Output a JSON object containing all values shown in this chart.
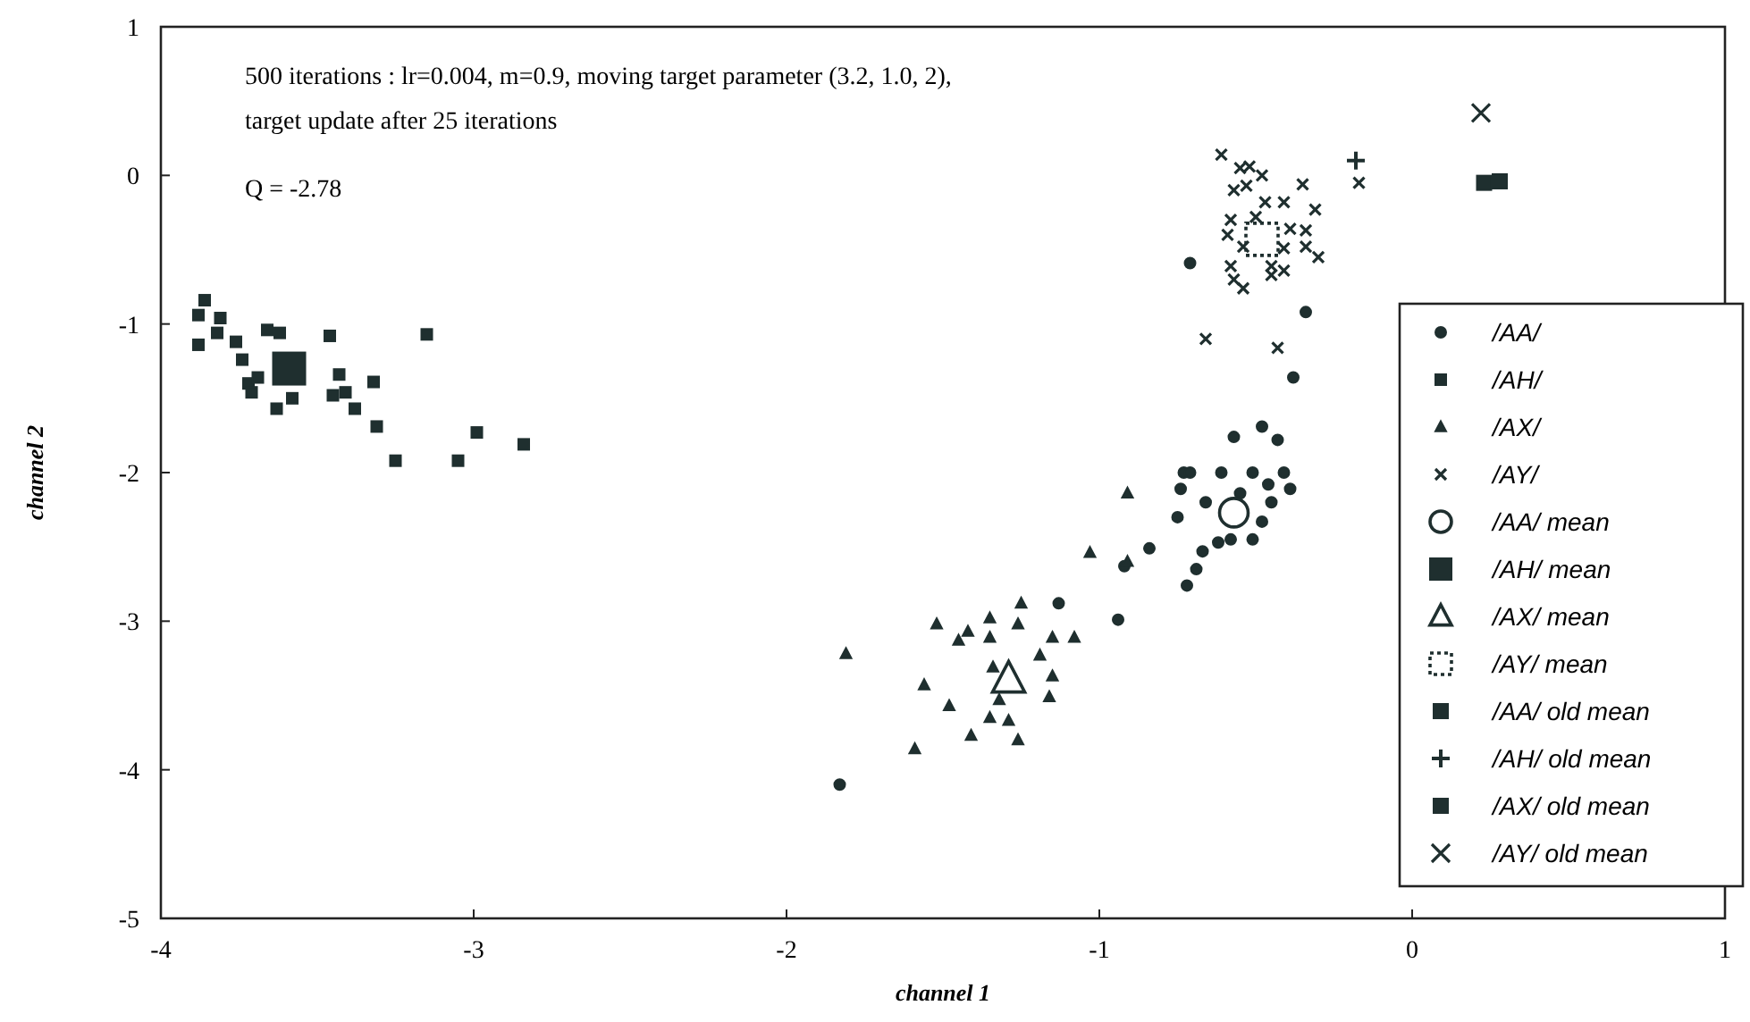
{
  "chart_data": {
    "type": "scatter",
    "xlabel": "channel 1",
    "ylabel": "channel 2",
    "annotations": [
      "500 iterations : lr=0.004, m=0.9, moving target parameter (3.2, 1.0, 2),",
      "target update after 25 iterations",
      "Q = -2.78"
    ],
    "xlim": [
      -4,
      1
    ],
    "xticks": [
      -4,
      -3,
      -2,
      -1,
      0,
      1
    ],
    "ylim": [
      -5,
      1
    ],
    "yticks": [
      -5,
      -4,
      -3,
      -2,
      -1,
      0,
      1
    ],
    "grid": false,
    "legend": "right",
    "series": [
      {
        "name": "/AA/",
        "color": "#1f2f2f",
        "marker": "circle",
        "x": [
          -0.57,
          -0.48,
          -0.43,
          -0.73,
          -0.71,
          -0.61,
          -0.51,
          -0.41,
          -0.74,
          -0.39,
          -0.66,
          -0.45,
          -0.75,
          -0.48,
          -0.51,
          -0.62,
          -0.58,
          -0.67,
          -0.69,
          -0.72,
          -0.84,
          -0.92,
          -0.94,
          -1.13,
          -1.83,
          -0.55,
          -0.46,
          -0.71,
          -0.38,
          -0.34
        ],
        "values": [
          -1.76,
          -1.69,
          -1.78,
          -2.0,
          -2.0,
          -2.0,
          -2.0,
          -2.0,
          -2.11,
          -2.11,
          -2.2,
          -2.2,
          -2.3,
          -2.33,
          -2.45,
          -2.47,
          -2.45,
          -2.53,
          -2.65,
          -2.76,
          -2.51,
          -2.63,
          -2.99,
          -2.88,
          -4.1,
          -2.14,
          -2.08,
          -0.59,
          -1.36,
          -0.92
        ]
      },
      {
        "name": "/AH/",
        "color": "#1f2f2f",
        "marker": "square",
        "x": [
          -3.86,
          -3.88,
          -3.81,
          -3.88,
          -3.82,
          -3.76,
          -3.66,
          -3.62,
          -3.74,
          -3.72,
          -3.69,
          -3.71,
          -3.63,
          -3.58,
          -3.46,
          -3.43,
          -3.45,
          -3.41,
          -3.32,
          -3.38,
          -3.31,
          -3.25,
          -3.15,
          -2.99,
          -3.05,
          -2.84
        ],
        "values": [
          -0.84,
          -0.94,
          -0.96,
          -1.14,
          -1.06,
          -1.12,
          -1.04,
          -1.06,
          -1.24,
          -1.4,
          -1.36,
          -1.46,
          -1.57,
          -1.5,
          -1.08,
          -1.34,
          -1.48,
          -1.46,
          -1.39,
          -1.57,
          -1.69,
          -1.92,
          -1.07,
          -1.73,
          -1.92,
          -1.81
        ]
      },
      {
        "name": "/AX/",
        "color": "#1f2f2f",
        "marker": "triangle",
        "x": [
          -0.91,
          -1.03,
          -1.81,
          -1.52,
          -1.42,
          -1.35,
          -1.25,
          -1.26,
          -1.35,
          -1.45,
          -1.15,
          -1.08,
          -1.56,
          -1.48,
          -1.35,
          -1.29,
          -1.16,
          -1.41,
          -1.26,
          -1.59,
          -1.32,
          -1.19,
          -1.15,
          -1.34,
          -0.91
        ],
        "values": [
          -2.14,
          -2.54,
          -3.22,
          -3.02,
          -3.07,
          -2.98,
          -2.88,
          -3.02,
          -3.11,
          -3.13,
          -3.11,
          -3.11,
          -3.43,
          -3.57,
          -3.65,
          -3.67,
          -3.51,
          -3.77,
          -3.8,
          -3.86,
          -3.53,
          -3.23,
          -3.37,
          -3.31,
          -2.6
        ]
      },
      {
        "name": "/AY/",
        "color": "#1f2f2f",
        "marker": "cross",
        "x": [
          -0.61,
          -0.55,
          -0.52,
          -0.48,
          -0.57,
          -0.53,
          -0.47,
          -0.41,
          -0.35,
          -0.31,
          -0.58,
          -0.5,
          -0.39,
          -0.34,
          -0.59,
          -0.54,
          -0.41,
          -0.34,
          -0.3,
          -0.45,
          -0.41,
          -0.58,
          -0.57,
          -0.54,
          -0.45,
          -0.66,
          -0.43,
          -0.17
        ],
        "values": [
          0.14,
          0.05,
          0.06,
          0,
          -0.1,
          -0.07,
          -0.18,
          -0.18,
          -0.06,
          -0.23,
          -0.3,
          -0.28,
          -0.36,
          -0.37,
          -0.4,
          -0.48,
          -0.49,
          -0.48,
          -0.55,
          -0.61,
          -0.64,
          -0.61,
          -0.7,
          -0.76,
          -0.67,
          -1.1,
          -1.16,
          -0.05
        ]
      },
      {
        "name": "/AA/ mean",
        "color": "#1f2f2f",
        "marker": "circle",
        "x": [
          -0.57
        ],
        "values": [
          -2.27
        ]
      },
      {
        "name": "/AH/ mean",
        "color": "#1f2f2f",
        "marker": "square",
        "x": [
          -3.59
        ],
        "values": [
          -1.3
        ]
      },
      {
        "name": "/AX/ mean",
        "color": "#1f2f2f",
        "marker": "triangle",
        "x": [
          -1.29
        ],
        "values": [
          -3.39
        ]
      },
      {
        "name": "/AY/ mean",
        "color": "#1f2f2f",
        "marker": "square",
        "line_style": "dotted",
        "x": [
          -0.48
        ],
        "values": [
          -0.43
        ]
      },
      {
        "name": "/AA/ old mean",
        "color": "#1f2f2f",
        "marker": "square",
        "x": [
          0.23
        ],
        "values": [
          -0.05
        ]
      },
      {
        "name": "/AH/ old mean",
        "color": "#1f2f2f",
        "marker": "plus",
        "x": [
          -0.18
        ],
        "values": [
          0.1
        ]
      },
      {
        "name": "/AX/ old mean",
        "color": "#1f2f2f",
        "marker": "square",
        "x": [
          0.28
        ],
        "values": [
          -0.04
        ]
      },
      {
        "name": "/AY/ old mean",
        "color": "#1f2f2f",
        "marker": "cross",
        "x": [
          0.22
        ],
        "values": [
          0.42
        ]
      }
    ]
  }
}
